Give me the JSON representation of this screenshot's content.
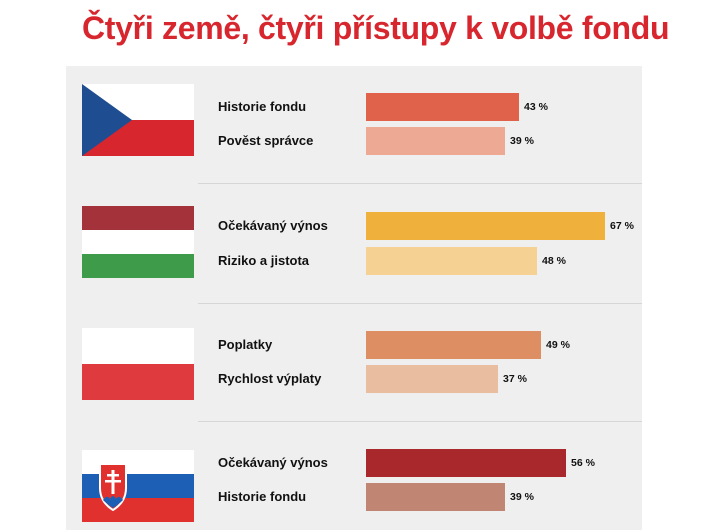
{
  "title": "Čtyři země, čtyři přístupy k volbě fondu",
  "chart_data": {
    "type": "bar",
    "orientation": "horizontal",
    "unit": "%",
    "xlim": [
      0,
      67
    ],
    "groups": [
      {
        "flag": "czech-flag",
        "items": [
          {
            "label": "Historie fondu",
            "value": 43,
            "value_label": "43 %",
            "color": "#e0624a"
          },
          {
            "label": "Pověst správce",
            "value": 39,
            "value_label": "39 %",
            "color": "#eda994"
          }
        ]
      },
      {
        "flag": "hungarian-flag",
        "items": [
          {
            "label": "Očekávaný výnos",
            "value": 67,
            "value_label": "67 %",
            "color": "#f0b03c"
          },
          {
            "label": "Riziko a jistota",
            "value": 48,
            "value_label": "48 %",
            "color": "#f5d194"
          }
        ]
      },
      {
        "flag": "polish-flag",
        "items": [
          {
            "label": "Poplatky",
            "value": 49,
            "value_label": "49 %",
            "color": "#dd8e63"
          },
          {
            "label": "Rychlost výplaty",
            "value": 37,
            "value_label": "37 %",
            "color": "#e9bd9f"
          }
        ]
      },
      {
        "flag": "slovak-flag",
        "items": [
          {
            "label": "Očekávaný výnos",
            "value": 56,
            "value_label": "56 %",
            "color": "#a8282b"
          },
          {
            "label": "Historie fondu",
            "value": 39,
            "value_label": "39 %",
            "color": "#c08573"
          }
        ]
      }
    ]
  }
}
